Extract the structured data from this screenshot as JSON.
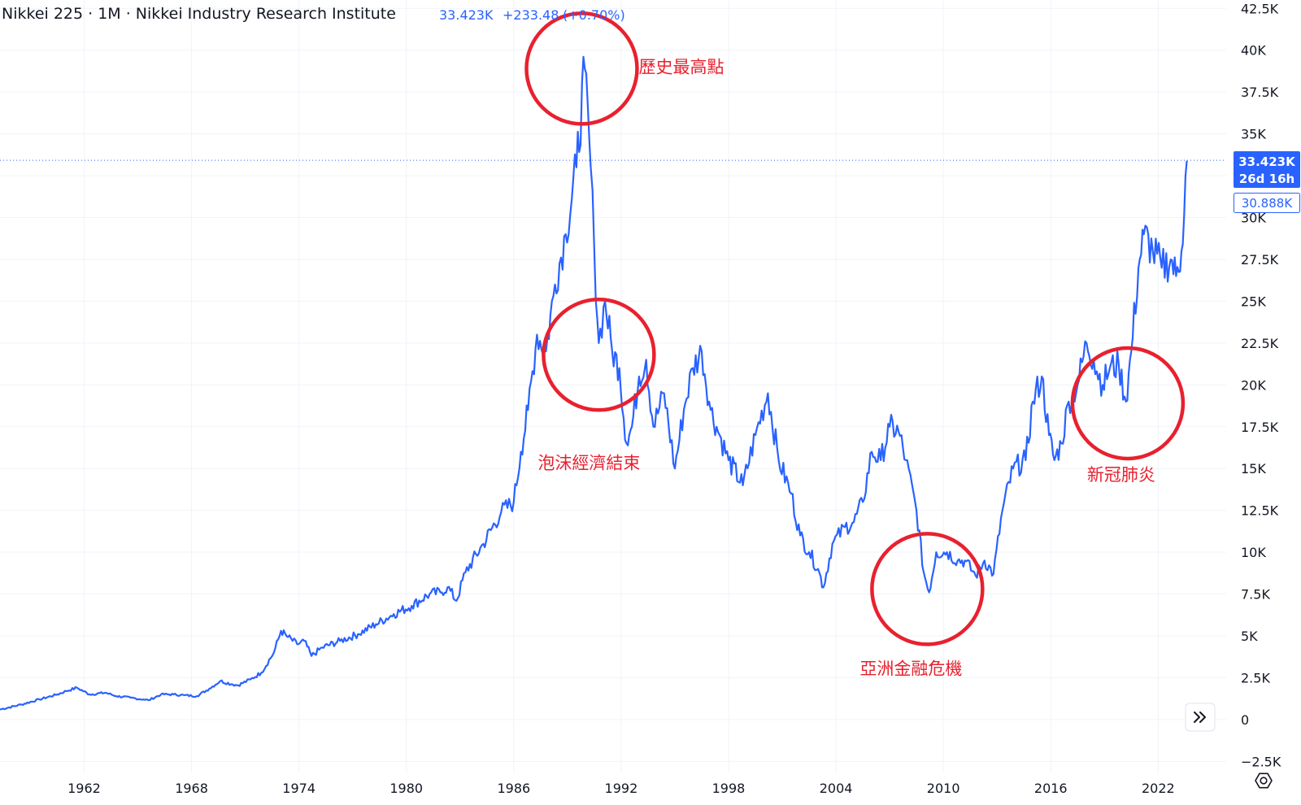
{
  "header": {
    "title": "Nikkei 225 · 1M · Nikkei Industry Research Institute",
    "last_price": "33.423K",
    "change": "+233.48",
    "change_pct": "(+0.70%)"
  },
  "price_tags": {
    "current_price": "33.423K",
    "countdown": "26d 16h",
    "secondary": "30.888K"
  },
  "colors": {
    "line": "#2962ff",
    "annotation": "#e8212f",
    "grid": "#f0f3fa"
  },
  "icons": {
    "scroll_button": "double-chevron-right-icon",
    "settings": "gear-icon"
  },
  "chart_data": {
    "type": "line",
    "xlim": [
      1957.3,
      2025.8
    ],
    "ylim": [
      -3650,
      43000
    ],
    "x_ticks": [
      1962,
      1968,
      1974,
      1980,
      1986,
      1992,
      1998,
      2004,
      2010,
      2016,
      2022
    ],
    "y_ticks": [
      {
        "value": 42500,
        "label": "42.5K"
      },
      {
        "value": 40000,
        "label": "40K"
      },
      {
        "value": 37500,
        "label": "37.5K"
      },
      {
        "value": 35000,
        "label": "35K"
      },
      {
        "value": 32500,
        "label": ""
      },
      {
        "value": 30000,
        "label": "30K"
      },
      {
        "value": 27500,
        "label": "27.5K"
      },
      {
        "value": 25000,
        "label": "25K"
      },
      {
        "value": 22500,
        "label": "22.5K"
      },
      {
        "value": 20000,
        "label": "20K"
      },
      {
        "value": 17500,
        "label": "17.5K"
      },
      {
        "value": 15000,
        "label": "15K"
      },
      {
        "value": 12500,
        "label": "12.5K"
      },
      {
        "value": 10000,
        "label": "10K"
      },
      {
        "value": 7500,
        "label": "7.5K"
      },
      {
        "value": 5000,
        "label": "5K"
      },
      {
        "value": 2500,
        "label": "2.5K"
      },
      {
        "value": 0,
        "label": "0"
      },
      {
        "value": -2500,
        "label": "−2.5K"
      }
    ],
    "current_value": 33423,
    "series": [
      {
        "x": [
          1957.3,
          1958.5,
          1959.5,
          1960.5,
          1961.0,
          1961.6,
          1962.3,
          1963.2,
          1963.8,
          1964.6,
          1965.3,
          1965.6,
          1966.3,
          1967.0,
          1967.6,
          1968.3,
          1969.0,
          1969.6,
          1970.3,
          1970.6,
          1971.3,
          1971.9,
          1972.6,
          1973.0,
          1973.3,
          1973.9,
          1974.3,
          1974.7,
          1975.3,
          1976.3,
          1977.3,
          1978.3,
          1979.3,
          1980.3,
          1981.3,
          1981.9,
          1982.3,
          1982.8,
          1983.3,
          1984.3,
          1985.3,
          1986.0,
          1986.4,
          1986.8,
          1987.3,
          1987.8,
          1988.3,
          1988.9,
          1989.5,
          1989.97,
          1990.3,
          1990.5,
          1990.75,
          1991.1,
          1991.5,
          1991.9,
          1992.3,
          1992.6,
          1993.0,
          1993.4,
          1993.8,
          1994.4,
          1995.0,
          1995.5,
          1996.0,
          1996.5,
          1997.0,
          1997.5,
          1998.0,
          1998.8,
          1999.5,
          2000.2,
          2000.8,
          2001.5,
          2002.0,
          2002.5,
          2003.0,
          2003.3,
          2003.8,
          2004.5,
          2005.0,
          2005.5,
          2006.0,
          2006.5,
          2007.0,
          2007.5,
          2007.9,
          2008.5,
          2008.9,
          2009.2,
          2009.6,
          2010.2,
          2010.8,
          2011.2,
          2011.8,
          2012.3,
          2012.8,
          2013.3,
          2013.9,
          2014.6,
          2015.0,
          2015.5,
          2015.9,
          2016.2,
          2016.6,
          2017.0,
          2017.5,
          2018.0,
          2018.4,
          2018.9,
          2019.3,
          2019.8,
          2020.2,
          2020.5,
          2020.9,
          2021.2,
          2021.7,
          2022.2,
          2022.7,
          2023.0,
          2023.3,
          2023.6
        ],
        "y": [
          600,
          900,
          1200,
          1500,
          1700,
          1900,
          1500,
          1600,
          1400,
          1300,
          1200,
          1150,
          1500,
          1500,
          1450,
          1400,
          1850,
          2300,
          2100,
          2050,
          2400,
          2800,
          4000,
          5300,
          5000,
          4500,
          4700,
          3800,
          4300,
          4700,
          5100,
          5700,
          6300,
          6800,
          7500,
          7600,
          7900,
          7100,
          8800,
          10500,
          12400,
          13000,
          16000,
          18500,
          23000,
          22000,
          26000,
          29000,
          33000,
          38900,
          33000,
          28000,
          22500,
          25000,
          22000,
          21000,
          16500,
          17500,
          20500,
          21500,
          17500,
          19500,
          15000,
          18500,
          21000,
          22000,
          18500,
          17000,
          15500,
          14000,
          17000,
          19500,
          15500,
          13500,
          11000,
          10000,
          9000,
          7900,
          10500,
          11500,
          11800,
          13000,
          16000,
          15500,
          17500,
          17200,
          15500,
          12500,
          8800,
          7600,
          10000,
          10000,
          9500,
          9500,
          8600,
          9500,
          8700,
          12500,
          15000,
          15500,
          19000,
          20500,
          17000,
          15500,
          16500,
          19000,
          20000,
          22500,
          21500,
          20000,
          21000,
          21200,
          19000,
          22000,
          27000,
          29000,
          28000,
          27000,
          27500,
          26500,
          28000,
          33400
        ]
      }
    ],
    "annotations": [
      {
        "label": "歷史最高點",
        "x": 1989.8,
        "y": 38900
      },
      {
        "label": "泡沫經濟結束",
        "x": 1990.75,
        "y": 21800
      },
      {
        "label": "亞洲金融危機",
        "x": 2009.1,
        "y": 7800
      },
      {
        "label": "新冠肺炎",
        "x": 2020.3,
        "y": 18900
      }
    ]
  }
}
